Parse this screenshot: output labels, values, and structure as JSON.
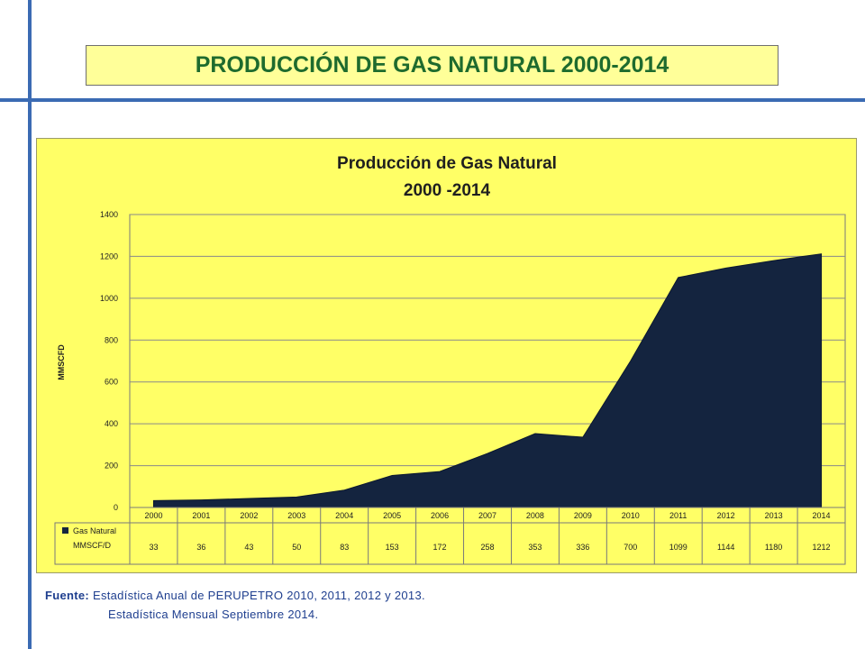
{
  "slide": {
    "title": "PRODUCCIÓN DE GAS NATURAL 2000-2014",
    "source_label": "Fuente:",
    "source_line1": "Estadística Anual de PERUPETRO 2010, 2011, 2012 y 2013.",
    "source_line2": "Estadística Mensual Septiembre 2014."
  },
  "colors": {
    "frame_lines": "#3b6bb3",
    "title_bg": "#ffff99",
    "title_text": "#1e6b2e",
    "chart_bg": "#ffff66",
    "series": "#14243f"
  },
  "chart_data": {
    "type": "area",
    "title": "Producción de Gas Natural",
    "subtitle": "2000 -2014",
    "ylabel": "MMSCFD",
    "xlabel": "",
    "ylim": [
      0,
      1400
    ],
    "yticks": [
      0,
      200,
      400,
      600,
      800,
      1000,
      1200,
      1400
    ],
    "grid": true,
    "legend": "data-table",
    "categories": [
      "2000",
      "2001",
      "2002",
      "2003",
      "2004",
      "2005",
      "2006",
      "2007",
      "2008",
      "2009",
      "2010",
      "2011",
      "2012",
      "2013",
      "2014"
    ],
    "series": [
      {
        "name": "Gas Natural MMSCF/D",
        "name_line1": "Gas Natural",
        "name_line2": "MMSCF/D",
        "values": [
          33,
          36,
          43,
          50,
          83,
          153,
          172,
          258,
          353,
          336,
          700,
          1099,
          1144,
          1180,
          1212
        ]
      }
    ]
  }
}
